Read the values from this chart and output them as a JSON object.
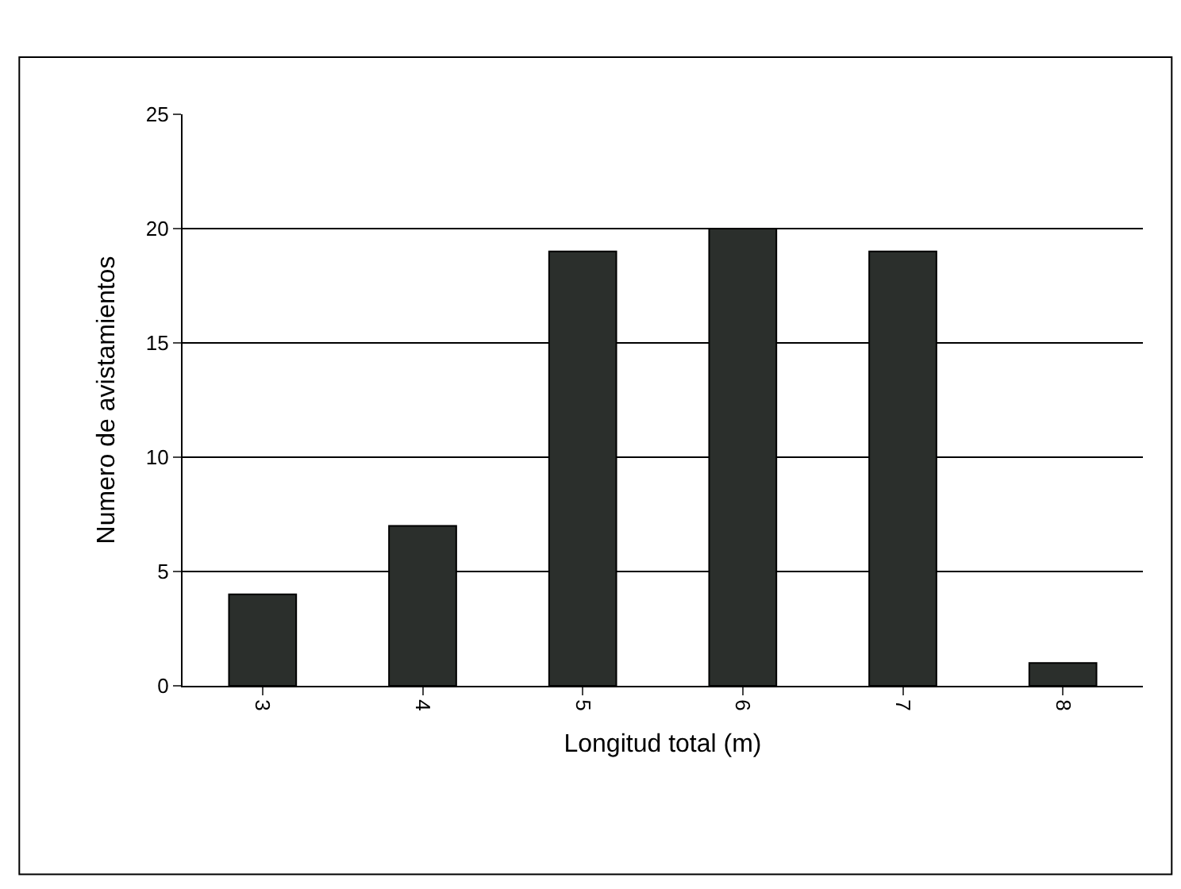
{
  "chart_data": {
    "type": "bar",
    "xlabel": "Longitud total (m)",
    "ylabel": "Numero de avistamientos",
    "categories": [
      "3",
      "4",
      "5",
      "6",
      "7",
      "8"
    ],
    "values": [
      4,
      7,
      19,
      20,
      19,
      1
    ],
    "color": "#2b2f2c",
    "ylim": [
      0,
      25
    ],
    "yticks": [
      0,
      5,
      10,
      15,
      20,
      25
    ],
    "grid": "y",
    "legend": false
  }
}
